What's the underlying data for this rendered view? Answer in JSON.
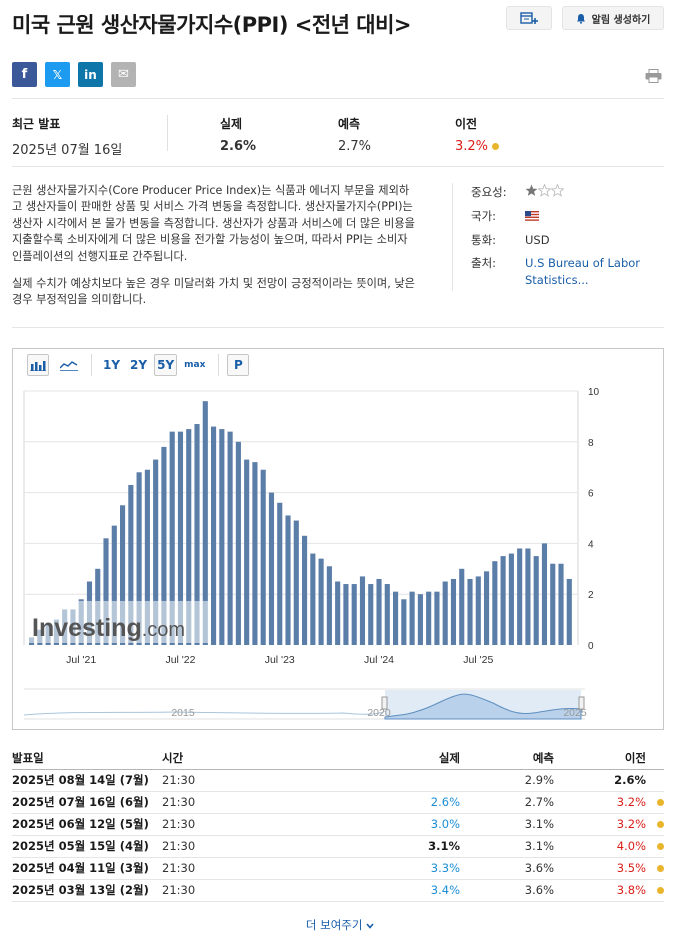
{
  "header": {
    "title": "미국 근원 생산자물가지수(PPI) <전년 대비>",
    "alert_button": "알림 생성하기"
  },
  "social": [
    "f",
    "𝕏",
    "in",
    "✉"
  ],
  "release": {
    "latest_label": "최근 발표",
    "latest_date": "2025년 07월 16일",
    "actual_label": "실제",
    "actual_value": "2.6%",
    "forecast_label": "예측",
    "forecast_value": "2.7%",
    "previous_label": "이전",
    "previous_value": "3.2%"
  },
  "description": {
    "p1": "근원 생산자물가지수(Core Producer Price Index)는 식품과 에너지 부문을 제외하고 생산자들이 판매한 상품 및 서비스 가격 변동을 측정합니다. 생산자물가지수(PPI)는 생산자 시각에서 본 물가 변동을 측정합니다. 생산자가 상품과 서비스에 더 많은 비용을 지출할수록 소비자에게 더 많은 비용을 전가할 가능성이 높으며, 따라서 PPI는 소비자 인플레이션의 선행지표로 간주됩니다.",
    "p2": "실제 수치가 예상치보다 높은 경우 미달러화 가치 및 전망이 긍정적이라는 뜻이며, 낮은 경우 부정적임을 의미합니다."
  },
  "meta": {
    "importance_label": "중요성:",
    "importance_stars": 1,
    "country_label": "국가:",
    "currency_label": "통화:",
    "currency_value": "USD",
    "source_label": "출처:",
    "source_value": "U.S Bureau of Labor Statistics..."
  },
  "chart_toolbar": {
    "ranges": [
      "1Y",
      "2Y",
      "5Y",
      "max"
    ],
    "active_range": "5Y",
    "p_button": "P"
  },
  "chart_data": {
    "type": "bar",
    "x_tick_labels": [
      "Jul '21",
      "Jul '22",
      "Jul '23",
      "Jul '24",
      "Jul '25"
    ],
    "y_ticks": [
      0,
      2,
      4,
      6,
      8,
      10
    ],
    "ylim": [
      0,
      10
    ],
    "grid": true,
    "color": "#5b7ea8",
    "watermark": "Investing.com",
    "navigator_labels": [
      "2015",
      "2020",
      "2025"
    ],
    "values": [
      0.3,
      0.6,
      0.8,
      1.0,
      1.4,
      1.4,
      1.8,
      2.5,
      3.0,
      4.2,
      4.7,
      5.5,
      6.3,
      6.8,
      6.9,
      7.3,
      7.8,
      8.4,
      8.4,
      8.5,
      8.7,
      9.6,
      8.6,
      8.5,
      8.4,
      8.0,
      7.3,
      7.2,
      6.9,
      6.0,
      5.6,
      5.1,
      4.9,
      4.3,
      3.6,
      3.4,
      3.1,
      2.5,
      2.4,
      2.4,
      2.7,
      2.4,
      2.6,
      2.4,
      2.1,
      1.8,
      2.1,
      2.0,
      2.1,
      2.1,
      2.5,
      2.6,
      3.0,
      2.6,
      2.7,
      2.9,
      3.3,
      3.5,
      3.6,
      3.8,
      3.8,
      3.5,
      4.0,
      3.2,
      3.2,
      2.6
    ]
  },
  "table": {
    "headers": [
      "발표일",
      "시간",
      "실제",
      "예측",
      "이전"
    ],
    "rows": [
      {
        "date": "2025년 08월 14일 (7월)",
        "time": "21:30",
        "actual": "",
        "actual_color": "",
        "forecast": "2.9%",
        "previous": "2.6%",
        "prev_color": "#1a1a1a",
        "dot": false,
        "prev_bold": true
      },
      {
        "date": "2025년 07월 16일 (6월)",
        "time": "21:30",
        "actual": "2.6%",
        "actual_color": "#1a8dd4",
        "forecast": "2.7%",
        "previous": "3.2%",
        "prev_color": "#d91e18",
        "dot": true,
        "prev_bold": false
      },
      {
        "date": "2025년 06월 12일 (5월)",
        "time": "21:30",
        "actual": "3.0%",
        "actual_color": "#1a8dd4",
        "forecast": "3.1%",
        "previous": "3.2%",
        "prev_color": "#d91e18",
        "dot": true,
        "prev_bold": false
      },
      {
        "date": "2025년 05월 15일 (4월)",
        "time": "21:30",
        "actual": "3.1%",
        "actual_color": "#1a1a1a",
        "forecast": "3.1%",
        "previous": "4.0%",
        "prev_color": "#d91e18",
        "dot": true,
        "prev_bold": false
      },
      {
        "date": "2025년 04월 11일 (3월)",
        "time": "21:30",
        "actual": "3.3%",
        "actual_color": "#1a8dd4",
        "forecast": "3.6%",
        "previous": "3.5%",
        "prev_color": "#d91e18",
        "dot": true,
        "prev_bold": false
      },
      {
        "date": "2025년 03월 13일 (2월)",
        "time": "21:30",
        "actual": "3.4%",
        "actual_color": "#1a8dd4",
        "forecast": "3.6%",
        "previous": "3.8%",
        "prev_color": "#d91e18",
        "dot": true,
        "prev_bold": false
      }
    ],
    "show_more": "더 보여주기"
  }
}
